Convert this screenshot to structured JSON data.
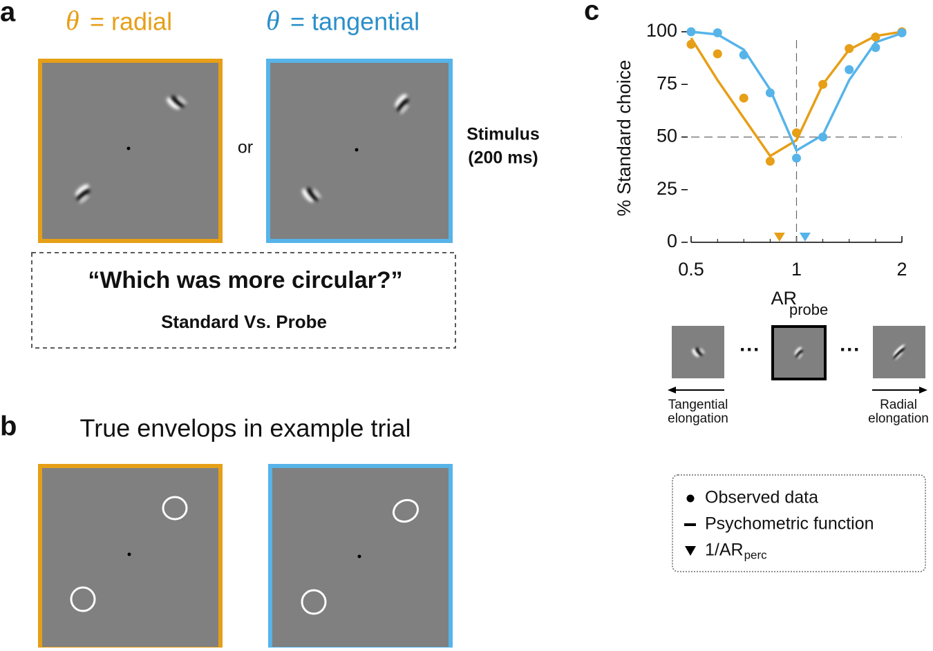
{
  "panel_a": {
    "letter": "a",
    "conditions": [
      {
        "symbol": "θ",
        "text": "= radial",
        "color": "#e69f17"
      },
      {
        "symbol": "θ",
        "text": "= tangential",
        "color": "#2a8fc9"
      }
    ],
    "or": "or",
    "stimulus": [
      "Stimulus",
      "(200 ms)"
    ],
    "question": "“Which was more circular?”",
    "comparison": "Standard Vs. Probe"
  },
  "panel_b": {
    "letter": "b",
    "title": "True envelops in example trial"
  },
  "panel_c": {
    "letter": "c",
    "ellipsis": "···",
    "left_arrow": [
      "Tangential",
      "elongation"
    ],
    "right_arrow": [
      "Radial",
      "elongation"
    ]
  },
  "chart_data": {
    "type": "line",
    "ylabel": "% Standard choice",
    "xlabel": {
      "main": "AR",
      "sub": "probe"
    },
    "xscale": "log",
    "xlim": [
      0.5,
      2
    ],
    "xticks": [
      0.5,
      1,
      2
    ],
    "ylim": [
      0,
      100
    ],
    "yticks": [
      0,
      25,
      50,
      75,
      100
    ],
    "hline": 50,
    "vline": 1,
    "x": [
      0.5,
      0.595,
      0.707,
      0.841,
      1,
      1.189,
      1.414,
      1.682,
      2
    ],
    "series": [
      {
        "kind": "dots",
        "color": "#e69f17",
        "values": [
          94,
          89.5,
          68.5,
          38.5,
          52,
          75,
          92,
          97.5,
          100
        ]
      },
      {
        "kind": "dots",
        "color": "#56b4e9",
        "values": [
          100,
          99.5,
          89,
          71,
          40,
          50,
          82,
          92.5,
          99.5
        ]
      },
      {
        "kind": "line",
        "color": "#e69f17",
        "values": [
          97,
          77,
          59,
          41,
          48.5,
          75,
          91.5,
          98,
          100
        ]
      },
      {
        "kind": "line",
        "color": "#56b4e9",
        "values": [
          100,
          98.7,
          91.5,
          72.5,
          43.6,
          51,
          77,
          95,
          99.3
        ]
      }
    ],
    "thresholds": [
      {
        "color": "#e69f17",
        "value": 0.894
      },
      {
        "color": "#56b4e9",
        "value": 1.058
      }
    ],
    "legend": [
      {
        "marker": "dot",
        "label": "Observed data"
      },
      {
        "marker": "dash",
        "label": "Psychometric function"
      },
      {
        "marker": "triangle",
        "label": "1/AR",
        "sub": "perc"
      }
    ]
  }
}
